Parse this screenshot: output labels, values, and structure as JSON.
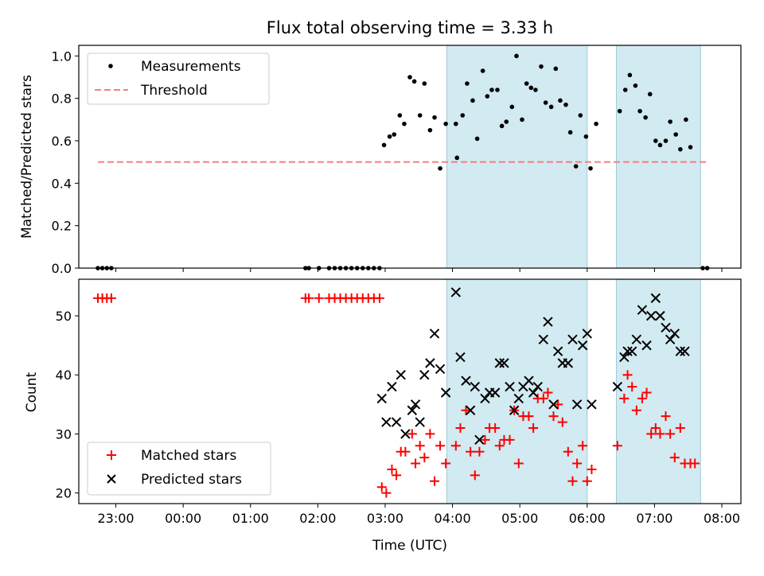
{
  "chart_data": [
    {
      "type": "scatter",
      "title": "Flux total observing time = 3.33 h",
      "ylabel": "Matched/Predicted stars",
      "xlabel": "",
      "xlim": [
        "22:27",
        "08:17"
      ],
      "ylim": [
        0,
        1.05
      ],
      "yticks": [
        "0.0",
        "0.2",
        "0.4",
        "0.6",
        "0.8",
        "1.0"
      ],
      "grid": false,
      "legend_position": "upper-left",
      "shaded_intervals": [
        [
          "03:55",
          "06:00"
        ],
        [
          "06:26",
          "07:41"
        ]
      ],
      "shade_color": "#add8e6",
      "threshold": {
        "name": "Threshold",
        "y": 0.5,
        "x_range": [
          "22:44",
          "07:48"
        ],
        "color": "#f08080"
      },
      "series": [
        {
          "name": "Measurements",
          "color": "#000000",
          "points": [
            [
              "22:44",
              0
            ],
            [
              "22:48",
              0
            ],
            [
              "22:52",
              0
            ],
            [
              "22:56",
              0
            ],
            [
              "01:49",
              0
            ],
            [
              "01:52",
              0
            ],
            [
              "02:01",
              0
            ],
            [
              "02:10",
              0
            ],
            [
              "02:15",
              0
            ],
            [
              "02:20",
              0
            ],
            [
              "02:25",
              0
            ],
            [
              "02:30",
              0
            ],
            [
              "02:35",
              0
            ],
            [
              "02:40",
              0
            ],
            [
              "02:45",
              0
            ],
            [
              "02:50",
              0
            ],
            [
              "02:55",
              0
            ],
            [
              "02:59",
              0.58
            ],
            [
              "03:04",
              0.62
            ],
            [
              "03:08",
              0.63
            ],
            [
              "03:13",
              0.72
            ],
            [
              "03:17",
              0.68
            ],
            [
              "03:22",
              0.9
            ],
            [
              "03:26",
              0.88
            ],
            [
              "03:31",
              0.72
            ],
            [
              "03:35",
              0.87
            ],
            [
              "03:40",
              0.65
            ],
            [
              "03:44",
              0.71
            ],
            [
              "03:49",
              0.47
            ],
            [
              "03:54",
              0.68
            ],
            [
              "04:03",
              0.68
            ],
            [
              "04:04",
              0.52
            ],
            [
              "04:09",
              0.72
            ],
            [
              "04:13",
              0.87
            ],
            [
              "04:18",
              0.79
            ],
            [
              "04:22",
              0.61
            ],
            [
              "04:27",
              0.93
            ],
            [
              "04:31",
              0.81
            ],
            [
              "04:35",
              0.84
            ],
            [
              "04:40",
              0.84
            ],
            [
              "04:44",
              0.67
            ],
            [
              "04:48",
              0.69
            ],
            [
              "04:53",
              0.76
            ],
            [
              "04:57",
              1.0
            ],
            [
              "05:02",
              0.7
            ],
            [
              "05:06",
              0.87
            ],
            [
              "05:10",
              0.85
            ],
            [
              "05:14",
              0.84
            ],
            [
              "05:19",
              0.95
            ],
            [
              "05:23",
              0.78
            ],
            [
              "05:28",
              0.76
            ],
            [
              "05:32",
              0.94
            ],
            [
              "05:36",
              0.79
            ],
            [
              "05:41",
              0.77
            ],
            [
              "05:45",
              0.64
            ],
            [
              "05:50",
              0.48
            ],
            [
              "05:54",
              0.72
            ],
            [
              "05:59",
              0.62
            ],
            [
              "06:03",
              0.47
            ],
            [
              "06:08",
              0.68
            ],
            [
              "06:29",
              0.74
            ],
            [
              "06:34",
              0.84
            ],
            [
              "06:38",
              0.91
            ],
            [
              "06:43",
              0.86
            ],
            [
              "06:47",
              0.74
            ],
            [
              "06:52",
              0.71
            ],
            [
              "06:56",
              0.82
            ],
            [
              "07:01",
              0.6
            ],
            [
              "07:05",
              0.58
            ],
            [
              "07:10",
              0.6
            ],
            [
              "07:14",
              0.69
            ],
            [
              "07:19",
              0.63
            ],
            [
              "07:23",
              0.56
            ],
            [
              "07:28",
              0.7
            ],
            [
              "07:32",
              0.57
            ],
            [
              "07:43",
              0
            ],
            [
              "07:47",
              0
            ]
          ]
        }
      ]
    },
    {
      "type": "scatter",
      "title": "",
      "ylabel": "Count",
      "xlabel": "Time (UTC)",
      "xlim": [
        "22:27",
        "08:17"
      ],
      "ylim": [
        18.2,
        56.2
      ],
      "yticks": [
        "20",
        "30",
        "40",
        "50"
      ],
      "xticks": [
        "23:00",
        "00:00",
        "01:00",
        "02:00",
        "03:00",
        "04:00",
        "05:00",
        "06:00",
        "07:00",
        "08:00"
      ],
      "grid": false,
      "legend_position": "lower-left",
      "shaded_intervals": [
        [
          "03:55",
          "06:00"
        ],
        [
          "06:26",
          "07:41"
        ]
      ],
      "shade_color": "#add8e6",
      "series": [
        {
          "name": "Matched stars",
          "color": "#ff0000",
          "marker": "plus",
          "points": [
            [
              "22:44",
              53
            ],
            [
              "22:48",
              53
            ],
            [
              "22:52",
              53
            ],
            [
              "22:56",
              53
            ],
            [
              "01:49",
              53
            ],
            [
              "01:52",
              53
            ],
            [
              "02:01",
              53
            ],
            [
              "02:10",
              53
            ],
            [
              "02:15",
              53
            ],
            [
              "02:20",
              53
            ],
            [
              "02:25",
              53
            ],
            [
              "02:30",
              53
            ],
            [
              "02:35",
              53
            ],
            [
              "02:40",
              53
            ],
            [
              "02:45",
              53
            ],
            [
              "02:50",
              53
            ],
            [
              "02:55",
              53
            ],
            [
              "02:57",
              21
            ],
            [
              "03:01",
              20
            ],
            [
              "03:06",
              24
            ],
            [
              "03:10",
              23
            ],
            [
              "03:14",
              27
            ],
            [
              "03:18",
              27
            ],
            [
              "03:24",
              30
            ],
            [
              "03:27",
              25
            ],
            [
              "03:31",
              28
            ],
            [
              "03:35",
              26
            ],
            [
              "03:40",
              30
            ],
            [
              "03:44",
              22
            ],
            [
              "03:49",
              28
            ],
            [
              "03:54",
              25
            ],
            [
              "04:03",
              28
            ],
            [
              "04:07",
              31
            ],
            [
              "04:12",
              34
            ],
            [
              "04:16",
              27
            ],
            [
              "04:20",
              23
            ],
            [
              "04:24",
              27
            ],
            [
              "04:29",
              29
            ],
            [
              "04:33",
              31
            ],
            [
              "04:38",
              31
            ],
            [
              "04:42",
              28
            ],
            [
              "04:46",
              29
            ],
            [
              "04:51",
              29
            ],
            [
              "04:55",
              34
            ],
            [
              "04:59",
              25
            ],
            [
              "05:03",
              33
            ],
            [
              "05:08",
              33
            ],
            [
              "05:12",
              31
            ],
            [
              "05:16",
              36
            ],
            [
              "05:21",
              36
            ],
            [
              "05:25",
              37
            ],
            [
              "05:30",
              33
            ],
            [
              "05:34",
              35
            ],
            [
              "05:38",
              32
            ],
            [
              "05:43",
              27
            ],
            [
              "05:47",
              22
            ],
            [
              "05:51",
              25
            ],
            [
              "05:56",
              28
            ],
            [
              "06:00",
              22
            ],
            [
              "06:04",
              24
            ],
            [
              "06:27",
              28
            ],
            [
              "06:33",
              36
            ],
            [
              "06:36",
              40
            ],
            [
              "06:40",
              38
            ],
            [
              "06:44",
              34
            ],
            [
              "06:49",
              36
            ],
            [
              "06:53",
              37
            ],
            [
              "06:57",
              30
            ],
            [
              "07:01",
              31
            ],
            [
              "07:05",
              30
            ],
            [
              "07:10",
              33
            ],
            [
              "07:14",
              30
            ],
            [
              "07:18",
              26
            ],
            [
              "07:23",
              31
            ],
            [
              "07:27",
              25
            ],
            [
              "07:32",
              25
            ],
            [
              "07:36",
              25
            ]
          ]
        },
        {
          "name": "Predicted stars",
          "color": "#000000",
          "marker": "x",
          "points": [
            [
              "02:57",
              36
            ],
            [
              "03:01",
              32
            ],
            [
              "03:06",
              38
            ],
            [
              "03:10",
              32
            ],
            [
              "03:14",
              40
            ],
            [
              "03:18",
              30
            ],
            [
              "03:24",
              34
            ],
            [
              "03:27",
              35
            ],
            [
              "03:31",
              32
            ],
            [
              "03:35",
              40
            ],
            [
              "03:40",
              42
            ],
            [
              "03:44",
              47
            ],
            [
              "03:49",
              41
            ],
            [
              "03:54",
              37
            ],
            [
              "04:03",
              54
            ],
            [
              "04:07",
              43
            ],
            [
              "04:12",
              39
            ],
            [
              "04:16",
              34
            ],
            [
              "04:20",
              38
            ],
            [
              "04:24",
              29
            ],
            [
              "04:29",
              36
            ],
            [
              "04:33",
              37
            ],
            [
              "04:38",
              37
            ],
            [
              "04:42",
              42
            ],
            [
              "04:46",
              42
            ],
            [
              "04:51",
              38
            ],
            [
              "04:55",
              34
            ],
            [
              "04:59",
              36
            ],
            [
              "05:03",
              38
            ],
            [
              "05:08",
              39
            ],
            [
              "05:12",
              37
            ],
            [
              "05:16",
              38
            ],
            [
              "05:21",
              46
            ],
            [
              "05:25",
              49
            ],
            [
              "05:30",
              35
            ],
            [
              "05:34",
              44
            ],
            [
              "05:38",
              42
            ],
            [
              "05:43",
              42
            ],
            [
              "05:47",
              46
            ],
            [
              "05:51",
              35
            ],
            [
              "05:56",
              45
            ],
            [
              "06:00",
              47
            ],
            [
              "06:04",
              35
            ],
            [
              "06:27",
              38
            ],
            [
              "06:33",
              43
            ],
            [
              "06:36",
              44
            ],
            [
              "06:40",
              44
            ],
            [
              "06:44",
              46
            ],
            [
              "06:49",
              51
            ],
            [
              "06:53",
              45
            ],
            [
              "06:57",
              50
            ],
            [
              "07:01",
              53
            ],
            [
              "07:05",
              50
            ],
            [
              "07:10",
              48
            ],
            [
              "07:14",
              46
            ],
            [
              "07:18",
              47
            ],
            [
              "07:23",
              44
            ],
            [
              "07:27",
              44
            ]
          ]
        }
      ]
    }
  ]
}
